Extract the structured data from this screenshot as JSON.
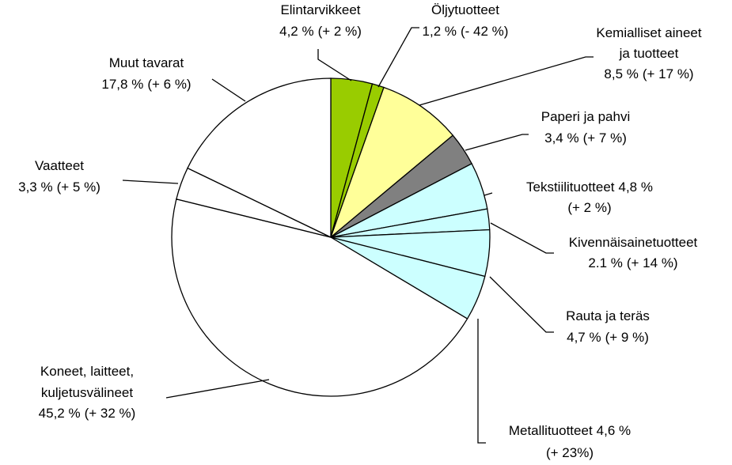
{
  "chart_data": {
    "type": "pie",
    "categories": [
      "Elintarvikkeet",
      "Öljytuotteet",
      "Kemialliset aineet ja tuotteet",
      "Paperi ja pahvi",
      "Tekstiilituotteet",
      "Kivennäisainetuotteet",
      "Rauta ja teräs",
      "Metallituotteet",
      "Koneet, laitteet, kuljetusvälineet",
      "Vaatteet",
      "Muut tavarat"
    ],
    "values": [
      4.2,
      1.2,
      8.5,
      3.4,
      4.8,
      2.1,
      4.7,
      4.6,
      45.2,
      3.3,
      17.8
    ],
    "value_labels": [
      "4,2 %",
      "1,2 %",
      "8,5 %",
      "3,4 %",
      "4,8 %",
      "2.1 %",
      "4,7 %",
      "4,6 %",
      "45,2 %",
      "3,3 %",
      "17,8 %"
    ],
    "change_labels": [
      "(+ 2 %)",
      "(- 42 %)",
      "(+ 17 %)",
      "(+ 7 %)",
      "(+ 2 %)",
      "(+ 14 %)",
      "(+ 9 %)",
      "(+ 23%)",
      "(+ 32 %)",
      "(+ 5 %)",
      "(+ 6 %)"
    ],
    "colors": [
      "#99cc00",
      "#99cc00",
      "#ffff99",
      "#808080",
      "#ccffff",
      "#ccffff",
      "#ccffff",
      "#ccffff",
      "#ffffff",
      "#ffffff",
      "#ffffff"
    ]
  }
}
